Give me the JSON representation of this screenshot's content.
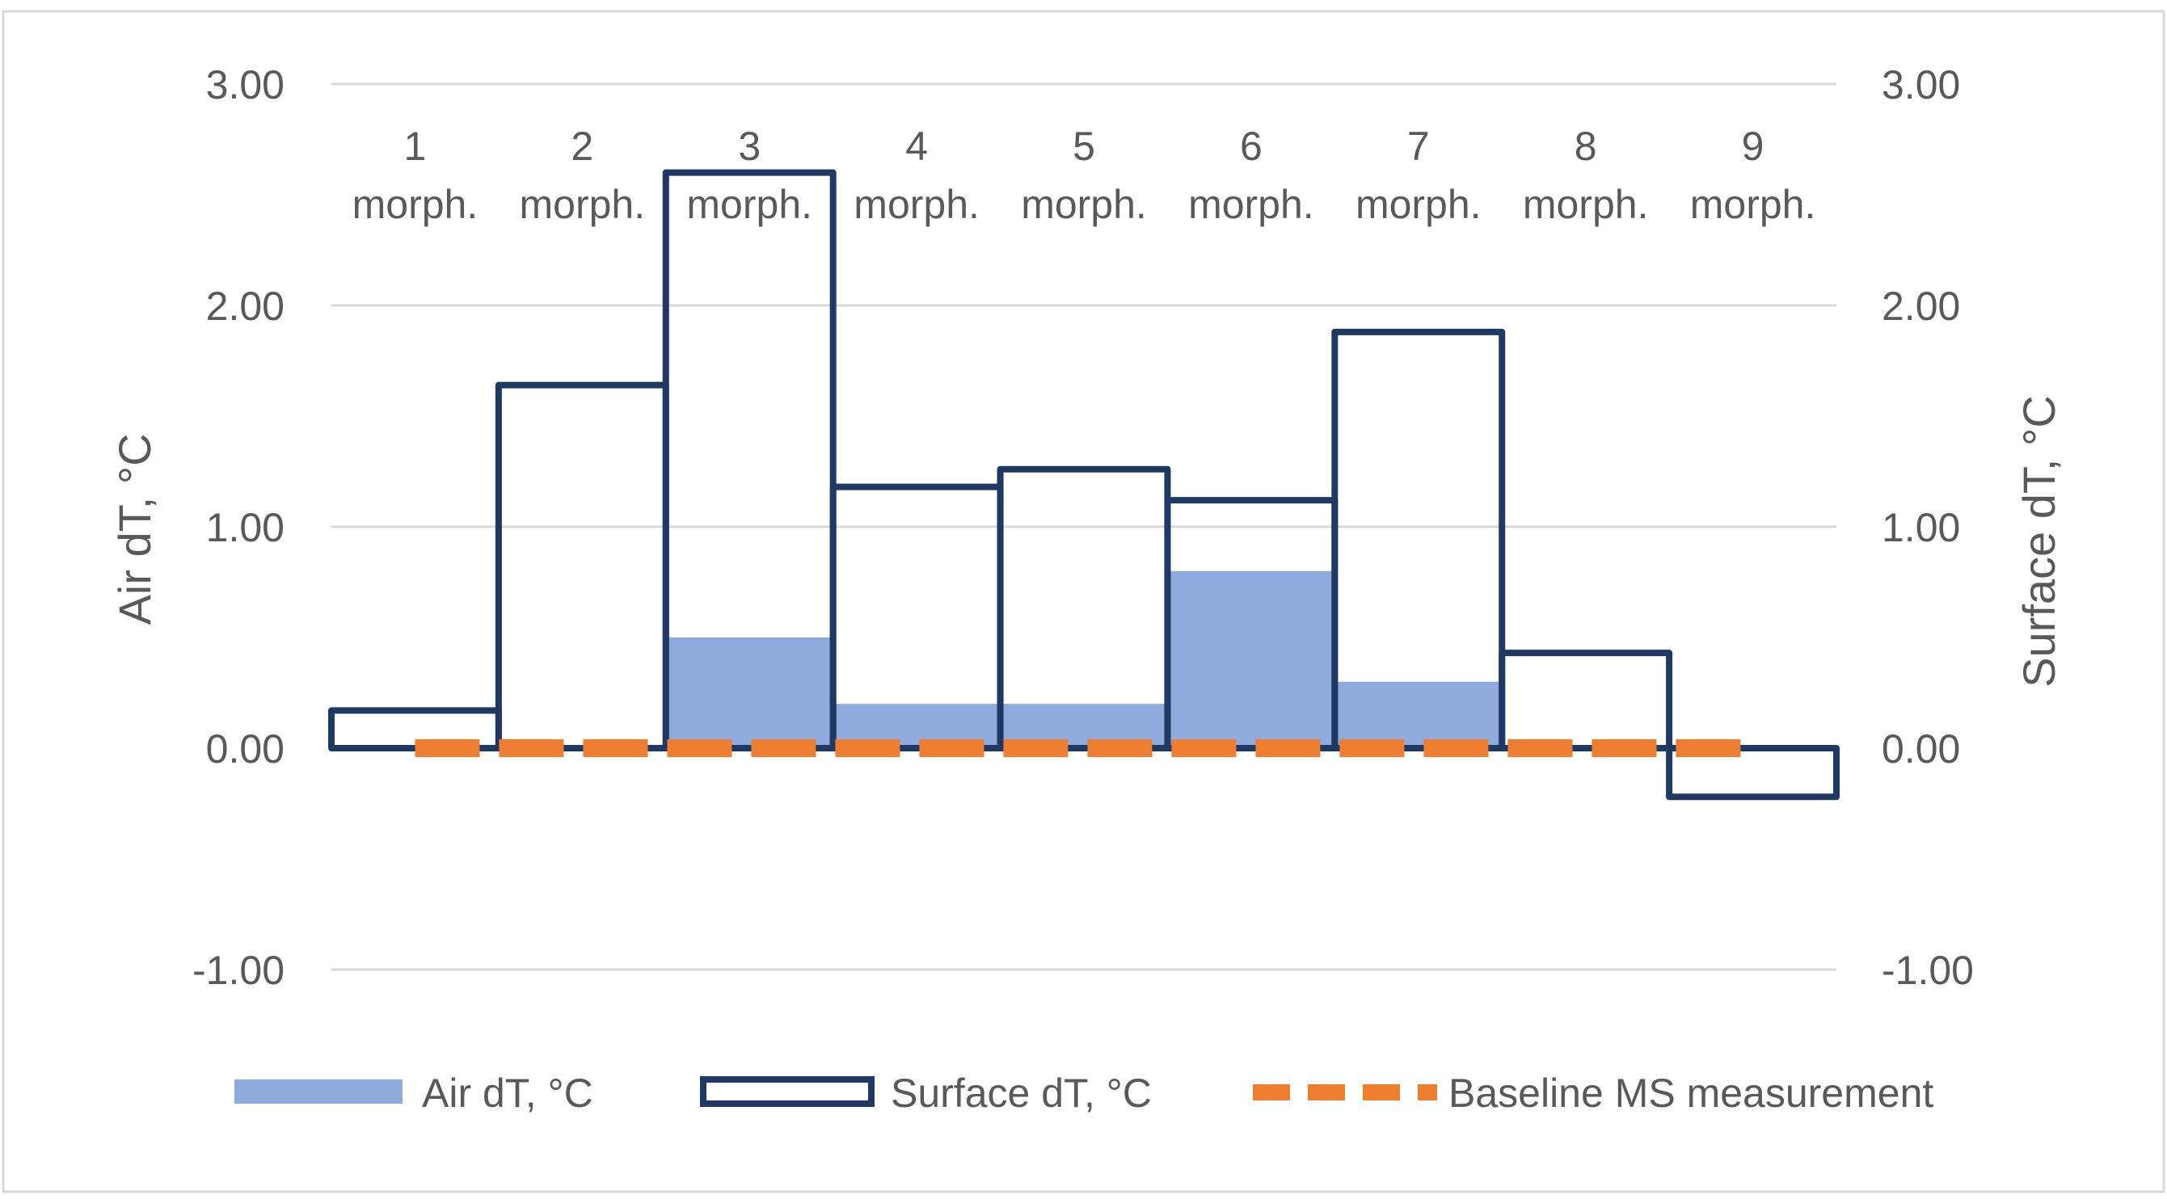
{
  "chart_data": {
    "type": "bar",
    "categories": [
      "1",
      "2",
      "3",
      "4",
      "5",
      "6",
      "7",
      "8",
      "9"
    ],
    "category_sublabel": "morph.",
    "series": [
      {
        "name": "Air dT, °C",
        "style": "filled-bar",
        "color": "#8FAADC",
        "axis": "left",
        "values": [
          0.0,
          0.0,
          0.5,
          0.2,
          0.2,
          0.8,
          0.3,
          0.0,
          0.0
        ]
      },
      {
        "name": "Surface dT, °C",
        "style": "outlined-step-bar",
        "color": "#1F3864",
        "axis": "right",
        "values": [
          0.17,
          1.64,
          2.6,
          1.18,
          1.26,
          1.12,
          1.88,
          0.43,
          -0.22
        ]
      },
      {
        "name": "Baseline MS measurement",
        "style": "dashed-line",
        "color": "#ED7D31",
        "axis": "left",
        "values": [
          0,
          0,
          0,
          0,
          0,
          0,
          0,
          0,
          0
        ]
      }
    ],
    "y_left": {
      "label": "Air dT, °C",
      "range": [
        -1.0,
        3.0
      ],
      "ticks": [
        "3.00",
        "2.00",
        "1.00",
        "0.00",
        "-1.00"
      ]
    },
    "y_right": {
      "label": "Surface dT, °C",
      "range": [
        -1.0,
        3.0
      ],
      "ticks": [
        "3.00",
        "2.00",
        "1.00",
        "0.00",
        "-1.00"
      ]
    },
    "grid": true,
    "legend_position": "bottom"
  }
}
